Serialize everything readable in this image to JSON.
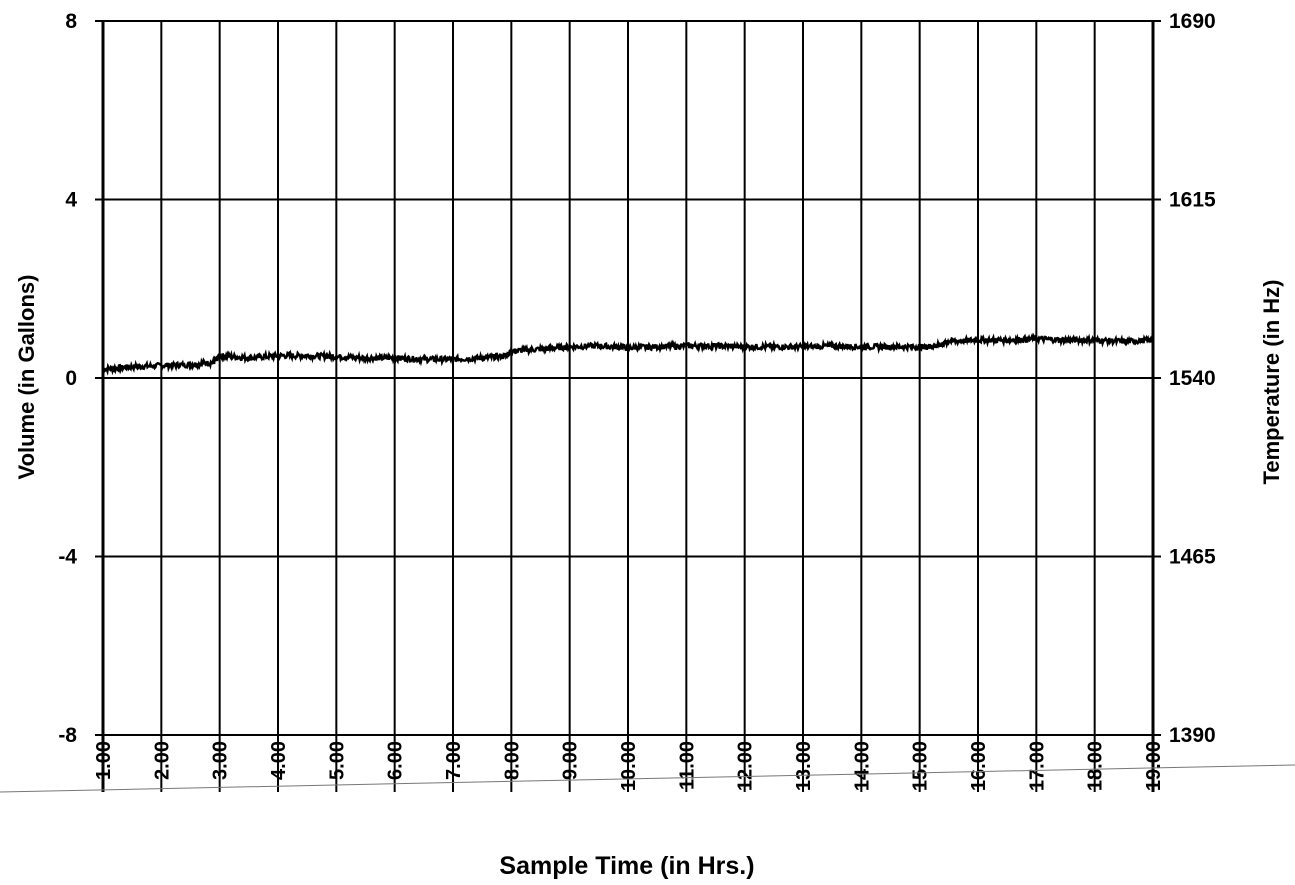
{
  "chart_data": {
    "type": "line",
    "title": "",
    "xlabel": "Sample Time (in Hrs.)",
    "ylabel_left": "Volume (in Gallons)",
    "ylabel_right": "Temperature (in Hz)",
    "x_ticks": [
      "1.00",
      "2.00",
      "3.00",
      "4.00",
      "5.00",
      "6.00",
      "7.00",
      "8.00",
      "9.00",
      "10.00",
      "11.00",
      "12.00",
      "13.00",
      "14.00",
      "15.00",
      "16.00",
      "17.00",
      "18.00",
      "19.00"
    ],
    "xlim": [
      1,
      19
    ],
    "y_left_ticks": [
      "8",
      "4",
      "0",
      "-4",
      "-8"
    ],
    "ylim_left": [
      -8,
      8
    ],
    "y_right_ticks": [
      "1690",
      "1615",
      "1540",
      "1465",
      "1390"
    ],
    "ylim_right": [
      1390,
      1690
    ],
    "grid": true,
    "series": [
      {
        "x": [
          1.0,
          1.5,
          2.0,
          2.5,
          2.9,
          3.0,
          3.5,
          4.0,
          4.5,
          5.0,
          5.5,
          6.0,
          6.5,
          7.0,
          7.5,
          7.9,
          8.0,
          8.5,
          9.0,
          9.5,
          10.0,
          10.5,
          11.0,
          11.5,
          12.0,
          12.5,
          13.0,
          13.5,
          14.0,
          14.5,
          15.0,
          15.3,
          15.5,
          16.0,
          16.5,
          17.0,
          17.5,
          18.0,
          18.5,
          19.0
        ],
        "values": [
          0.2,
          0.25,
          0.28,
          0.3,
          0.35,
          0.5,
          0.45,
          0.5,
          0.5,
          0.48,
          0.45,
          0.45,
          0.42,
          0.42,
          0.45,
          0.5,
          0.6,
          0.65,
          0.7,
          0.72,
          0.68,
          0.7,
          0.72,
          0.72,
          0.7,
          0.7,
          0.7,
          0.72,
          0.7,
          0.7,
          0.7,
          0.72,
          0.82,
          0.85,
          0.85,
          0.88,
          0.85,
          0.85,
          0.82,
          0.85
        ]
      }
    ]
  }
}
